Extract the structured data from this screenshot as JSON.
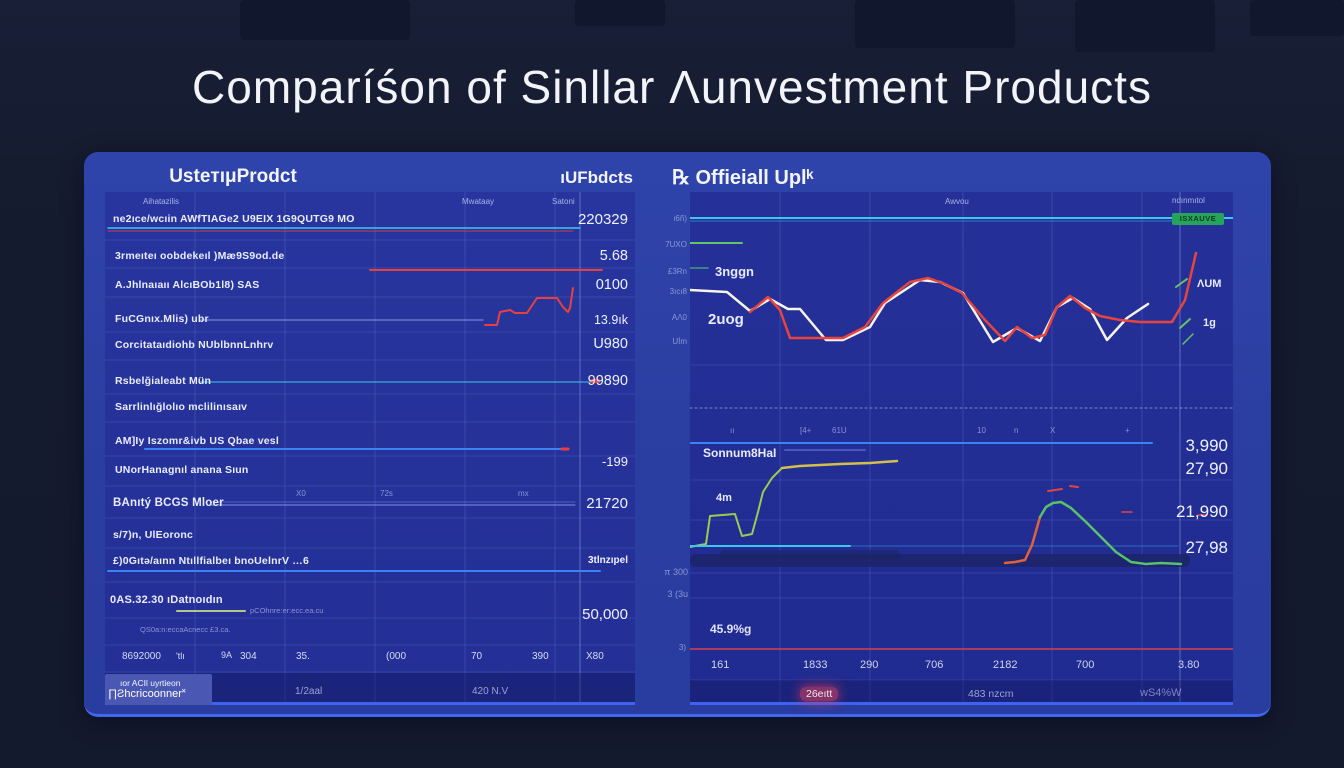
{
  "title": "Comparíśon of Sinllar Λunvestment Products",
  "colors": {
    "page_bg": "#141a2d",
    "panel_bg": "#2a3da0",
    "chart_bg": "#232f96",
    "cyan": "#3ec6f0",
    "blue": "#3b82f6",
    "red": "#e8443e",
    "white_line": "#f5f3ea",
    "green": "#63c46a",
    "yellow": "#d2bf4c",
    "orange": "#e2603c",
    "badge_green": "#27a45c",
    "bottom_edge": "#4166f0"
  },
  "left": {
    "header_left": "UsteтıμProdct",
    "header_right": "ıUFbdcts",
    "col_headers": [
      "Aihatazilis",
      "Mwataay",
      "Satoni"
    ],
    "rows": [
      {
        "label": "ne2ıce/wcıin AWfTIAGe2 U9EIX 1G9QUTG9 MO",
        "value": "220329"
      },
      {
        "label": "3rmeıteı oobdekeıl )Mæ9S9od.de",
        "value": "5.68"
      },
      {
        "label": "A.Jhlnaıaıı AlcıBOb1l8) SAS",
        "value": "0100"
      },
      {
        "label": "FuCGnıx.Mlis) ubr",
        "value": "13.9ık"
      },
      {
        "label": "Corcitataıdiohb NUblbnnLnhrv",
        "value": "U980"
      },
      {
        "label": "Rsbelğialeabt Mün",
        "value": "99890"
      },
      {
        "label": "Sarrlinlığlolıo mclilinısaıv",
        "value": ""
      },
      {
        "label": "AM]Iy Iszomr&ivb US Qbae vesl",
        "value": ""
      },
      {
        "label": "UNorHanagnıl anana Sıun",
        "value": "-199"
      },
      {
        "label": "BAnıtý BCGS Mloer",
        "value": "21720"
      },
      {
        "label": "s/7)n, UlEoronc",
        "value": ""
      },
      {
        "label": "£)0Gıtə/aınn Ntıllfialbeı bnoUelnrV …6",
        "value": "3tlnzıpel"
      },
      {
        "label": "0AS.32.30 ıDatnoıdın",
        "sub": "pCOhnre:er:ecc.ea.cu",
        "value": "50,000"
      },
      {
        "label": "QS0a:n:eccaAcnecc £3.ca.",
        "value": ""
      }
    ],
    "mid_ticks": [
      "X0",
      "72s",
      "mx"
    ],
    "axis_labels": [
      "8692000",
      "'tlı",
      "9A",
      "304",
      "35.",
      "(000",
      "70",
      "390",
      "X80"
    ],
    "footer": {
      "box_line1": "ıor ACIl uyrtieon",
      "box_line2": "∏Ƨhcricoonner˟",
      "center": "1/2aal",
      "right": "420 N.V"
    }
  },
  "right": {
    "header": "℞ Offieiall Uplᵏ",
    "top_label_mid": "Awvou",
    "top_label_right": "ndınmıtol",
    "badge": "ISXAUVE",
    "y_labels": [
      "ı6ñ)",
      "7UXO",
      "£3Rn",
      "3ıcı8",
      "AΛ0",
      "Uİm"
    ],
    "ann_top_1": "3nggn",
    "ann_top_2": "2uog",
    "ann_right_1": "ΛUM",
    "ann_right_2": "1g",
    "mid_ticks": [
      "ıı",
      "[4+",
      "61U",
      "10",
      "n",
      "X",
      "+"
    ],
    "mid_label": "Sonnum8HaI",
    "ann_low": "4m",
    "values": [
      "3,990",
      "27,90",
      "21,990",
      "27,98"
    ],
    "low_left_1": "π 300",
    "low_left_2": "3 (3u",
    "low_left_3": "45.9%g",
    "low_left_4": "3)",
    "x_labels": [
      "161",
      "1833",
      "290",
      "706",
      "2182",
      "700",
      "3.80"
    ],
    "footer": {
      "left": "26eıtt",
      "center": "483 nzcm",
      "right": "wS4%W"
    }
  },
  "chart_data": [
    {
      "type": "table",
      "panel": "left",
      "title": "UsteтıμProdct",
      "columns": [
        "Aihatazilis",
        "Mwataay",
        "Satoni"
      ],
      "values": [
        "220329",
        "5.68",
        "0100",
        "13.9ık",
        "U980",
        "99890",
        "-199",
        "21720",
        "3tlnzıpel",
        "50,000"
      ],
      "x_axis": [
        "8692000",
        "'tlı",
        "9A",
        "304",
        "35.",
        "(000",
        "70",
        "390",
        "X80"
      ]
    },
    {
      "type": "line",
      "panel": "right-top",
      "title": "℞ Offieiall Uplᵏ",
      "x_axis": [
        "161",
        "1833",
        "290",
        "706",
        "2182",
        "700",
        "3.80"
      ],
      "y_axis": [
        "ı6ñ)",
        "7UXO",
        "£3Rn",
        "3ıcı8",
        "AΛ0",
        "Uİm"
      ],
      "svg": "right-svg",
      "series": [
        {
          "name": "top-cyan-line",
          "color": "#3ec6f0",
          "width": 2,
          "points": [
            [
              0,
              26
            ],
            [
              543,
              26
            ]
          ]
        },
        {
          "name": "top-cyan-subline",
          "color": "#2f8fd0",
          "width": 1,
          "opacity": 0.8,
          "points": [
            [
              0,
              29
            ],
            [
              483,
              29
            ]
          ]
        },
        {
          "name": "green-segment-a",
          "color": "#63c46a",
          "width": 2,
          "points": [
            [
              0,
              51
            ],
            [
              52,
              51
            ]
          ]
        },
        {
          "name": "green-segment-b",
          "color": "#63c46a",
          "width": 1.5,
          "opacity": 0.7,
          "points": [
            [
              0,
              76
            ],
            [
              18,
              76
            ]
          ]
        },
        {
          "name": "white-series",
          "color": "#f5f3ea",
          "width": 2.5,
          "points": [
            [
              0,
              98
            ],
            [
              37,
              100
            ],
            [
              60,
              119
            ],
            [
              80,
              107
            ],
            [
              98,
              117
            ],
            [
              110,
              117
            ],
            [
              136,
              148
            ],
            [
              153,
              148
            ],
            [
              180,
              135
            ],
            [
              195,
              111
            ],
            [
              230,
              88
            ],
            [
              250,
              90
            ],
            [
              273,
              101
            ],
            [
              303,
              150
            ],
            [
              327,
              136
            ],
            [
              350,
              149
            ],
            [
              367,
              115
            ],
            [
              383,
              106
            ],
            [
              400,
              117
            ],
            [
              417,
              148
            ],
            [
              437,
              126
            ],
            [
              458,
              112
            ]
          ]
        },
        {
          "name": "red-series",
          "color": "#e8443e",
          "width": 2.5,
          "points": [
            [
              60,
              120
            ],
            [
              78,
              105
            ],
            [
              90,
              118
            ],
            [
              100,
              146
            ],
            [
              153,
              146
            ],
            [
              175,
              135
            ],
            [
              193,
              111
            ],
            [
              220,
              90
            ],
            [
              238,
              86
            ],
            [
              255,
              92
            ],
            [
              272,
              101
            ],
            [
              295,
              128
            ],
            [
              315,
              149
            ],
            [
              327,
              135
            ],
            [
              342,
              146
            ],
            [
              355,
              143
            ],
            [
              367,
              115
            ],
            [
              380,
              104
            ],
            [
              395,
              116
            ],
            [
              410,
              124
            ],
            [
              430,
              128
            ],
            [
              450,
              130
            ],
            [
              468,
              130
            ],
            [
              482,
              130
            ],
            [
              495,
              108
            ],
            [
              506,
              61
            ]
          ]
        },
        {
          "name": "green-arrow-a",
          "color": "#63c46a",
          "width": 2,
          "points": [
            [
              486,
              95
            ],
            [
              497,
              87
            ]
          ]
        },
        {
          "name": "green-arrow-b",
          "color": "#63c46a",
          "width": 2,
          "points": [
            [
              490,
              136
            ],
            [
              500,
              127
            ]
          ]
        },
        {
          "name": "green-arrow-c",
          "color": "#63c46a",
          "width": 1.5,
          "points": [
            [
              493,
              152
            ],
            [
              503,
              142
            ]
          ]
        },
        {
          "name": "dotted-separator",
          "color": "rgba(205,215,255,0.55)",
          "width": 1,
          "dash": "2,3",
          "points": [
            [
              0,
              216
            ],
            [
              543,
              216
            ]
          ]
        },
        {
          "name": "mid-blue-line",
          "color": "#3b82f6",
          "width": 2,
          "points": [
            [
              0,
              251
            ],
            [
              462,
              251
            ]
          ]
        },
        {
          "name": "mid-blue-subline",
          "color": "rgba(150,170,255,0.35)",
          "width": 2,
          "points": [
            [
              95,
              258
            ],
            [
              175,
              258
            ]
          ]
        },
        {
          "name": "ramp-green",
          "color": "#9ccb52",
          "width": 2,
          "points": [
            [
              0,
              355
            ],
            [
              10,
              353
            ],
            [
              16,
              352
            ],
            [
              20,
              324
            ],
            [
              45,
              322
            ],
            [
              52,
              344
            ],
            [
              62,
              342
            ],
            [
              68,
              320
            ],
            [
              73,
              300
            ],
            [
              82,
              286
            ],
            [
              92,
              276
            ]
          ]
        },
        {
          "name": "ramp-yellow",
          "color": "#d2bf4c",
          "width": 2.5,
          "points": [
            [
              92,
              276
            ],
            [
              110,
              274
            ],
            [
              150,
              272
            ],
            [
              180,
              271
            ],
            [
              207,
              269
            ]
          ]
        },
        {
          "name": "low-cyan-line",
          "color": "#3ec6f0",
          "width": 2,
          "points": [
            [
              0,
              354
            ],
            [
              160,
              354
            ]
          ]
        },
        {
          "name": "low-cyan-faint",
          "color": "rgba(62,198,240,0.28)",
          "width": 1.5,
          "points": [
            [
              160,
              354
            ],
            [
              488,
              354
            ]
          ]
        },
        {
          "name": "hump-orange",
          "color": "#e2603c",
          "width": 2.5,
          "points": [
            [
              315,
              371
            ],
            [
              325,
              370
            ],
            [
              335,
              368
            ],
            [
              342,
              353
            ],
            [
              350,
              325
            ]
          ]
        },
        {
          "name": "hump-green",
          "color": "#57c16b",
          "width": 2.5,
          "points": [
            [
              350,
              325
            ],
            [
              356,
              315
            ],
            [
              363,
              311
            ],
            [
              371,
              310
            ],
            [
              381,
              316
            ],
            [
              396,
              330
            ],
            [
              411,
              345
            ],
            [
              426,
              360
            ],
            [
              441,
              370
            ],
            [
              456,
              372
            ],
            [
              471,
              371
            ],
            [
              491,
              372
            ]
          ]
        },
        {
          "name": "red-dash-a",
          "color": "#e8443e",
          "width": 2,
          "points": [
            [
              358,
              299
            ],
            [
              372,
              297
            ]
          ]
        },
        {
          "name": "red-dash-b",
          "color": "#e8443e",
          "width": 2,
          "points": [
            [
              380,
              294
            ],
            [
              388,
              295
            ]
          ]
        },
        {
          "name": "red-dash-c",
          "color": "#e8443e",
          "width": 1.5,
          "points": [
            [
              432,
              320
            ],
            [
              442,
              320
            ]
          ]
        },
        {
          "name": "red-dash-d",
          "color": "#e8443e",
          "width": 1.5,
          "points": [
            [
              508,
              323
            ],
            [
              516,
              323
            ]
          ]
        },
        {
          "name": "bottom-red-line",
          "color": "#d8404a",
          "width": 1.5,
          "points": [
            [
              0,
              457
            ],
            [
              543,
              457
            ]
          ]
        }
      ]
    },
    {
      "type": "line",
      "panel": "left-decor",
      "title": "left table rule lines and sparkline",
      "svg": "left-svg",
      "series": [
        {
          "name": "row1-cyan-underline",
          "color": "#3ec6f0",
          "width": 1.5,
          "points": [
            [
              3,
              36
            ],
            [
              475,
              36
            ]
          ]
        },
        {
          "name": "row1-red-underline",
          "color": "#e8403f",
          "width": 1,
          "opacity": 0.85,
          "points": [
            [
              3,
              39
            ],
            [
              468,
              39
            ]
          ]
        },
        {
          "name": "row2-red-line",
          "color": "#e8403f",
          "width": 2,
          "points": [
            [
              265,
              78
            ],
            [
              497,
              78
            ]
          ]
        },
        {
          "name": "row4-lavender-line",
          "color": "rgba(160,178,255,0.8)",
          "width": 1,
          "points": [
            [
              95,
              128
            ],
            [
              378,
              128
            ]
          ]
        },
        {
          "name": "sparkline-red",
          "color": "#e8403f",
          "width": 2,
          "points": [
            [
              380,
              133
            ],
            [
              392,
              133
            ],
            [
              395,
              120
            ],
            [
              405,
              118
            ],
            [
              410,
              121
            ],
            [
              422,
              121
            ],
            [
              432,
              106
            ],
            [
              452,
              106
            ],
            [
              458,
              115
            ],
            [
              463,
              120
            ],
            [
              465,
              116
            ],
            [
              468,
              96
            ]
          ]
        },
        {
          "name": "row6-cyan-line",
          "color": "#3ec6f0",
          "width": 1,
          "points": [
            [
              95,
              190
            ],
            [
              487,
              190
            ]
          ]
        },
        {
          "name": "row6-red-marker",
          "color": "#e8403f",
          "width": 4,
          "points": [
            [
              487,
              189
            ],
            [
              493,
              189
            ]
          ]
        },
        {
          "name": "row8-blue-underline",
          "color": "#3b82f6",
          "width": 2,
          "points": [
            [
              40,
              257
            ],
            [
              457,
              257
            ]
          ]
        },
        {
          "name": "row8-red-tip",
          "color": "#e8403f",
          "width": 3,
          "points": [
            [
              457,
              257
            ],
            [
              463,
              257
            ]
          ]
        },
        {
          "name": "row10-lavender-line",
          "color": "rgba(170,185,255,0.7)",
          "width": 1,
          "points": [
            [
              105,
              313
            ],
            [
              470,
              313
            ]
          ]
        },
        {
          "name": "row10-lavender-line2",
          "color": "rgba(170,185,255,0.35)",
          "width": 1,
          "points": [
            [
              105,
              310
            ],
            [
              470,
              310
            ]
          ]
        },
        {
          "name": "row12-blue-underline",
          "color": "#3b82f6",
          "width": 2,
          "points": [
            [
              3,
              379
            ],
            [
              495,
              379
            ]
          ]
        },
        {
          "name": "sub-green-underline",
          "color": "#cfe08a",
          "width": 2,
          "opacity": 0.85,
          "points": [
            [
              72,
              419
            ],
            [
              140,
              419
            ]
          ]
        }
      ]
    }
  ]
}
